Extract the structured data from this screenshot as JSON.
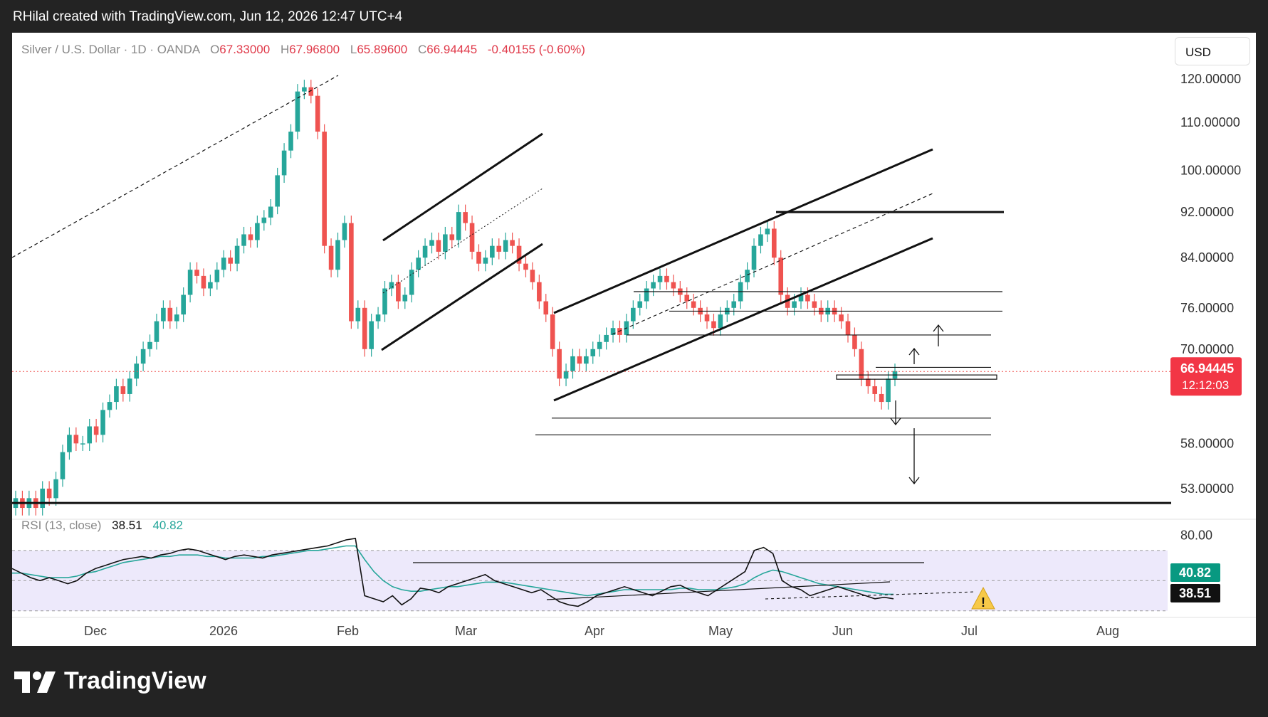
{
  "header": {
    "attribution": "RHilal created with TradingView.com, Jun 12, 2026 12:47 UTC+4"
  },
  "legend": {
    "symbol": "Silver / U.S. Dollar · 1D · OANDA",
    "o_label": "O",
    "o_value": "67.33000",
    "h_label": "H",
    "h_value": "67.96800",
    "l_label": "L",
    "l_value": "65.89600",
    "c_label": "C",
    "c_value": "66.94445",
    "change": "-0.40155 (-0.60%)"
  },
  "currency_button": "USD",
  "price_badge": {
    "value": "66.94445",
    "countdown": "12:12:03"
  },
  "rsi_legend": {
    "label": "RSI (13, close)",
    "rsi": "38.51",
    "ma": "40.82"
  },
  "footer": {
    "brand": "TradingView"
  },
  "colors": {
    "up": "#26a69a",
    "down": "#ef5350",
    "rsi_line": "#111111",
    "rsi_ma": "#26a69a",
    "rsi_band": "#ede9fb",
    "badge_red": "#f23645",
    "badge_green": "#089981"
  },
  "chart_data": [
    {
      "type": "candlestick",
      "title": "Silver / U.S. Dollar · 1D · OANDA",
      "x_tick_labels": [
        "Dec",
        "2026",
        "Feb",
        "Mar",
        "Apr",
        "May",
        "Jun",
        "Jul",
        "Aug"
      ],
      "y_tick_labels": [
        "120.00000",
        "110.00000",
        "100.00000",
        "92.00000",
        "84.00000",
        "76.00000",
        "70.00000",
        "58.00000",
        "53.00000"
      ],
      "y_scale": "log",
      "ylim": [
        50,
        125
      ],
      "last_price": 66.94445,
      "horizontal_levels": [
        92,
        78.5,
        75.5,
        72,
        67.5,
        66.2,
        61,
        59,
        51.5
      ],
      "close_series": [
        52,
        51,
        52,
        51,
        53,
        52,
        54,
        57,
        59,
        58,
        58,
        60,
        59,
        62,
        63,
        65,
        64,
        66,
        68,
        70,
        71,
        74,
        76,
        74,
        75,
        78,
        82,
        81,
        79,
        80,
        82,
        84,
        83,
        86,
        88,
        87,
        90,
        91,
        93,
        99,
        104,
        108,
        117,
        118,
        116,
        108,
        86,
        82,
        87,
        90,
        74,
        76,
        70,
        74,
        75,
        79,
        80,
        77,
        78,
        82,
        84,
        86,
        87,
        85,
        88,
        87,
        92,
        90,
        85,
        83,
        84,
        86,
        85,
        87,
        86,
        83,
        82,
        80,
        77,
        75,
        70,
        66,
        67,
        69,
        68,
        69,
        70,
        71,
        72,
        73,
        72,
        74,
        76,
        77,
        79,
        80,
        81,
        80,
        79,
        78,
        77,
        76,
        75,
        74,
        73,
        75,
        76,
        77,
        80,
        82,
        86,
        88,
        89,
        84,
        78,
        76,
        77,
        78,
        77,
        76,
        75,
        76,
        75,
        74,
        72,
        70,
        66,
        65,
        64,
        63,
        66,
        67
      ],
      "annotations": [
        "ascending channel Feb–Mar",
        "ascending channel Mar–Jun",
        "target arrows down to 53"
      ]
    },
    {
      "type": "line",
      "title": "RSI (13, close)",
      "y_tick_labels": [
        "80.00"
      ],
      "ylim": [
        20,
        85
      ],
      "bands": [
        70,
        50,
        30
      ],
      "series": [
        {
          "name": "RSI",
          "last": 38.51,
          "values": [
            58,
            55,
            52,
            50,
            52,
            50,
            48,
            50,
            55,
            58,
            60,
            62,
            64,
            65,
            66,
            65,
            67,
            68,
            70,
            71,
            70,
            68,
            66,
            64,
            66,
            67,
            66,
            65,
            67,
            68,
            69,
            70,
            71,
            72,
            73,
            75,
            77,
            78,
            40,
            38,
            36,
            40,
            34,
            38,
            45,
            44,
            42,
            46,
            48,
            50,
            52,
            54,
            50,
            48,
            46,
            44,
            42,
            44,
            40,
            36,
            34,
            33,
            36,
            40,
            42,
            44,
            46,
            44,
            42,
            40,
            43,
            46,
            47,
            44,
            42,
            40,
            44,
            48,
            52,
            56,
            70,
            72,
            68,
            50,
            46,
            44,
            40,
            42,
            44,
            46,
            44,
            42,
            40,
            38,
            39,
            38
          ]
        },
        {
          "name": "RSI MA",
          "last": 40.82,
          "values": [
            55,
            55,
            54,
            53,
            52,
            52,
            52,
            53,
            55,
            56,
            58,
            60,
            62,
            63,
            64,
            65,
            66,
            66,
            67,
            67,
            67,
            66,
            66,
            65,
            65,
            65,
            65,
            66,
            66,
            67,
            68,
            69,
            70,
            70,
            71,
            72,
            73,
            73,
            64,
            56,
            50,
            46,
            44,
            43,
            43,
            44,
            45,
            46,
            46,
            47,
            48,
            49,
            49,
            49,
            48,
            47,
            46,
            45,
            44,
            43,
            42,
            41,
            40,
            41,
            42,
            43,
            44,
            44,
            44,
            44,
            44,
            44,
            45,
            45,
            44,
            44,
            44,
            45,
            46,
            48,
            52,
            55,
            57,
            56,
            54,
            52,
            50,
            48,
            47,
            46,
            45,
            44,
            43,
            42,
            41,
            41
          ]
        }
      ]
    }
  ]
}
